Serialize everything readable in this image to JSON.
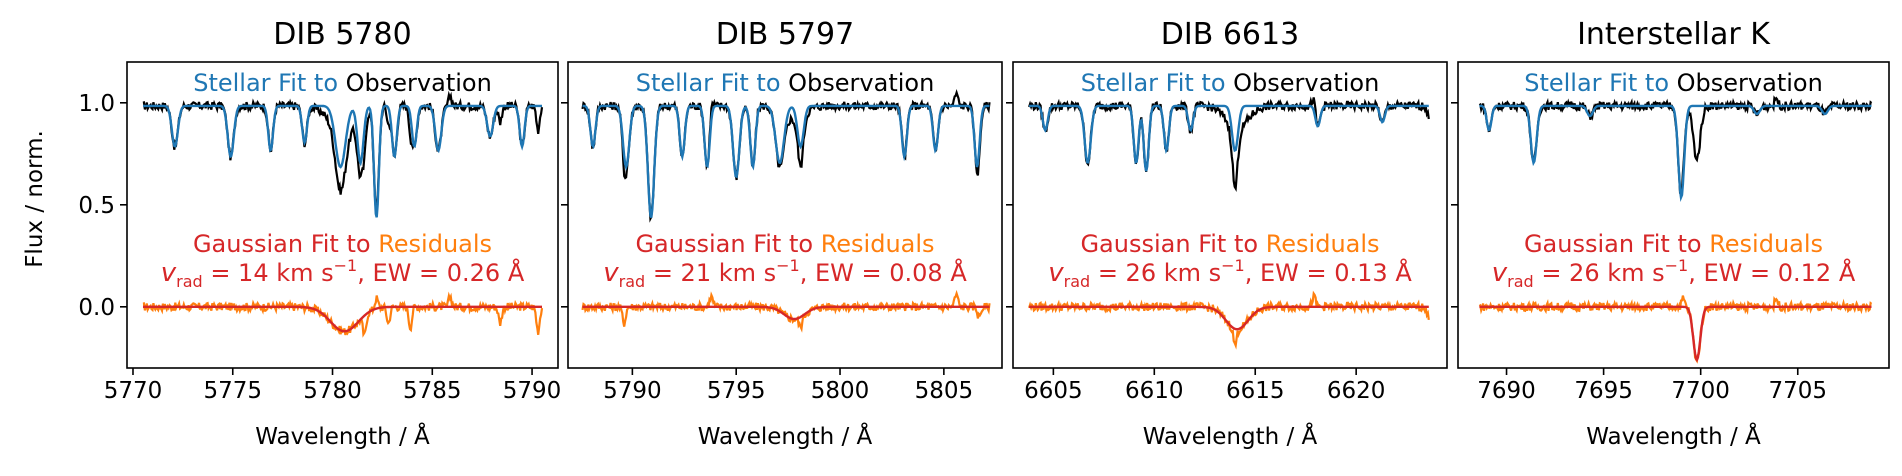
{
  "figure": {
    "ylabel": "Flux / norm.",
    "xlabel": "Wavelength / Å",
    "fit_label_colored": "Stellar Fit to",
    "fit_label_black": "Observation",
    "resid_label_red": "Gaussian Fit to",
    "resid_label_orange": "Residuals",
    "vrad_symbol": "v",
    "vrad_sub": "rad",
    "unit_text": "km s",
    "unit_exp": "−1",
    "ew_prefix": ", EW = ",
    "ew_unit": " Å",
    "colors": {
      "observation": "#000000",
      "stellar_fit": "#1f77b4",
      "residuals": "#ff7f0e",
      "gaussian_fit": "#d62728"
    }
  },
  "chart_data": [
    {
      "type": "line",
      "title": "DIB 5780",
      "vrad": "14",
      "ew": "0.26",
      "xlim": [
        5769.7,
        5791.3
      ],
      "ylim": [
        -0.3,
        1.2
      ],
      "xticks": [
        5770,
        5775,
        5780,
        5785,
        5790
      ],
      "yticks": [
        0.0,
        0.5,
        1.0
      ],
      "range": [
        5770.5,
        5790.5
      ],
      "stellar_lines": [
        [
          5772.1,
          0.2,
          0.15
        ],
        [
          5774.9,
          0.25,
          0.15
        ],
        [
          5776.9,
          0.22,
          0.12
        ],
        [
          5778.6,
          0.18,
          0.12
        ],
        [
          5780.4,
          0.3,
          0.25
        ],
        [
          5781.4,
          0.28,
          0.15
        ],
        [
          5782.2,
          0.55,
          0.12
        ],
        [
          5783.1,
          0.25,
          0.12
        ],
        [
          5784.1,
          0.2,
          0.12
        ],
        [
          5785.3,
          0.22,
          0.15
        ],
        [
          5787.9,
          0.15,
          0.15
        ],
        [
          5789.5,
          0.2,
          0.12
        ]
      ],
      "dib": {
        "center": 5780.6,
        "depth": 0.12,
        "sigma": 0.7
      },
      "resid_spikes": [
        [
          5781.6,
          -0.1
        ],
        [
          5782.2,
          0.05
        ],
        [
          5782.8,
          -0.08
        ],
        [
          5783.9,
          -0.1
        ],
        [
          5785.9,
          0.05
        ],
        [
          5788.4,
          -0.08
        ],
        [
          5790.3,
          -0.12
        ]
      ]
    },
    {
      "type": "line",
      "title": "DIB 5797",
      "vrad": "21",
      "ew": "0.08",
      "xlim": [
        5786.9,
        5807.8
      ],
      "ylim": [
        -0.3,
        1.2
      ],
      "xticks": [
        5790,
        5795,
        5800,
        5805
      ],
      "yticks": [
        0.0,
        0.5,
        1.0
      ],
      "range": [
        5787.6,
        5807.2
      ],
      "stellar_lines": [
        [
          5788.1,
          0.2,
          0.12
        ],
        [
          5789.7,
          0.3,
          0.15
        ],
        [
          5790.9,
          0.55,
          0.15
        ],
        [
          5792.4,
          0.25,
          0.12
        ],
        [
          5793.6,
          0.3,
          0.12
        ],
        [
          5795.0,
          0.35,
          0.15
        ],
        [
          5795.8,
          0.3,
          0.12
        ],
        [
          5797.1,
          0.28,
          0.2
        ],
        [
          5798.1,
          0.2,
          0.15
        ],
        [
          5803.1,
          0.25,
          0.12
        ],
        [
          5804.6,
          0.22,
          0.12
        ],
        [
          5806.6,
          0.3,
          0.12
        ]
      ],
      "dib": {
        "center": 5797.8,
        "depth": 0.06,
        "sigma": 0.5
      },
      "resid_spikes": [
        [
          5789.6,
          -0.08
        ],
        [
          5793.8,
          0.05
        ],
        [
          5798.1,
          -0.05
        ],
        [
          5805.6,
          0.06
        ],
        [
          5806.7,
          -0.05
        ]
      ]
    },
    {
      "type": "line",
      "title": "DIB 6613",
      "vrad": "26",
      "ew": "0.13",
      "xlim": [
        6603.0,
        6624.5
      ],
      "ylim": [
        -0.3,
        1.2
      ],
      "xticks": [
        6605,
        6610,
        6615,
        6620
      ],
      "yticks": [
        0.0,
        0.5,
        1.0
      ],
      "range": [
        6603.8,
        6623.6
      ],
      "stellar_lines": [
        [
          6604.6,
          0.12,
          0.12
        ],
        [
          6606.7,
          0.28,
          0.15
        ],
        [
          6609.1,
          0.28,
          0.12
        ],
        [
          6609.6,
          0.32,
          0.12
        ],
        [
          6610.6,
          0.22,
          0.12
        ],
        [
          6611.8,
          0.12,
          0.12
        ],
        [
          6614.0,
          0.22,
          0.15
        ],
        [
          6618.1,
          0.1,
          0.12
        ],
        [
          6621.3,
          0.08,
          0.12
        ]
      ],
      "dib": {
        "center": 6614.1,
        "depth": 0.11,
        "sigma": 0.55
      },
      "resid_spikes": [
        [
          6614.0,
          -0.08
        ],
        [
          6617.9,
          0.05
        ],
        [
          6623.6,
          -0.06
        ]
      ]
    },
    {
      "type": "line",
      "title": "Interstellar K",
      "vrad": "26",
      "ew": "0.12",
      "xlim": [
        7687.5,
        7709.7
      ],
      "ylim": [
        -0.3,
        1.2
      ],
      "xticks": [
        7690,
        7695,
        7700,
        7705
      ],
      "yticks": [
        0.0,
        0.5,
        1.0
      ],
      "range": [
        7688.6,
        7708.8
      ],
      "stellar_lines": [
        [
          7689.1,
          0.12,
          0.12
        ],
        [
          7691.4,
          0.28,
          0.15
        ],
        [
          7694.3,
          0.05,
          0.15
        ],
        [
          7699.0,
          0.45,
          0.15
        ],
        [
          7702.9,
          0.04,
          0.15
        ],
        [
          7706.4,
          0.04,
          0.15
        ]
      ],
      "dib": {
        "center": 7699.8,
        "depth": 0.26,
        "sigma": 0.18
      },
      "resid_spikes": [
        [
          7699.1,
          0.04
        ],
        [
          7703.9,
          0.04
        ]
      ]
    }
  ]
}
